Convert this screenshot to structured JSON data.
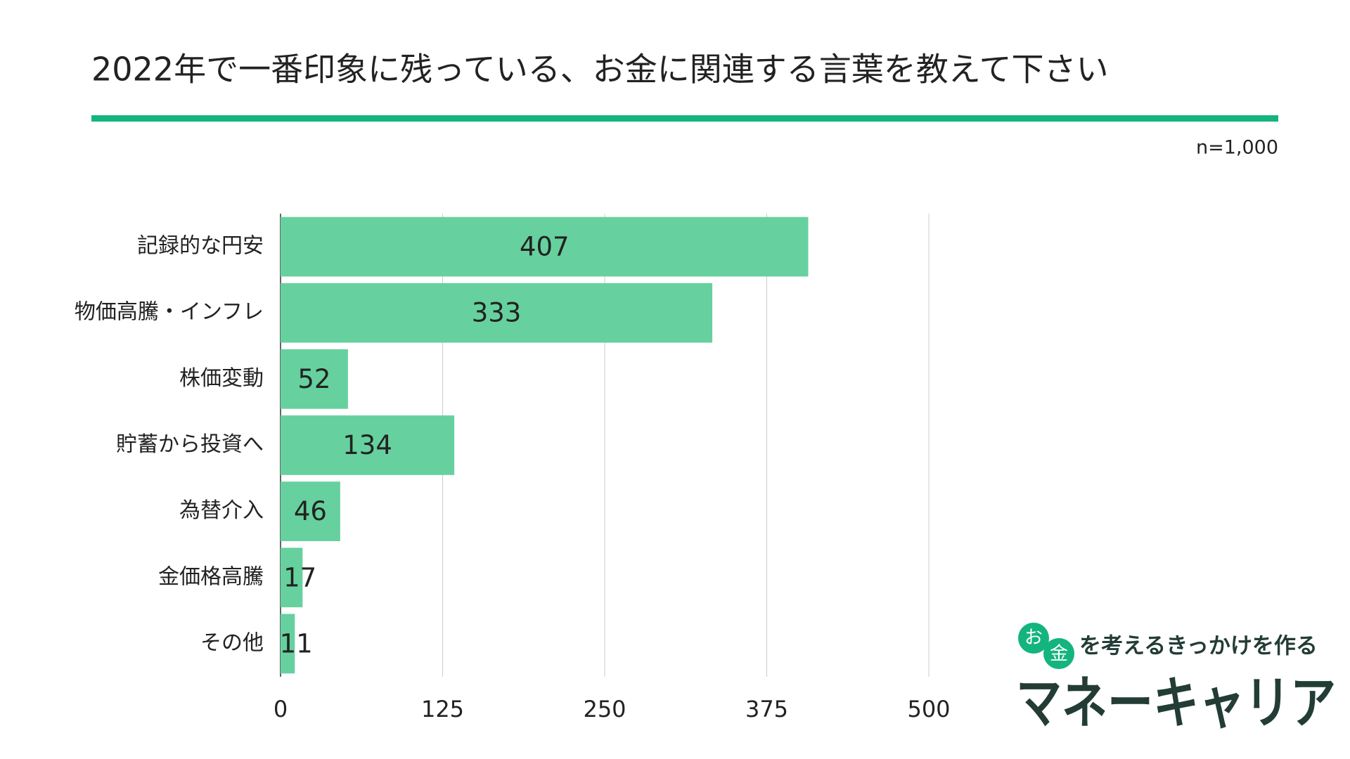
{
  "chart_data": {
    "type": "bar",
    "orientation": "horizontal",
    "title": "2022年で一番印象に残っている、お金に関連する言葉を教えて下さい",
    "note": "n=1,000",
    "categories": [
      "記録的な円安",
      "物価高騰・インフレ",
      "株価変動",
      "貯蓄から投資へ",
      "為替介入",
      "金価格高騰",
      "その他"
    ],
    "values": [
      407,
      333,
      52,
      134,
      46,
      17,
      11
    ],
    "color": "#66d19e",
    "xlim": [
      0,
      500
    ],
    "xticks": [
      0,
      125,
      250,
      375,
      500
    ],
    "grid": true
  },
  "logo": {
    "circled": [
      "お",
      "金"
    ],
    "tagline": "を考えるきっかけを作る",
    "name": "マネーキャリア"
  }
}
